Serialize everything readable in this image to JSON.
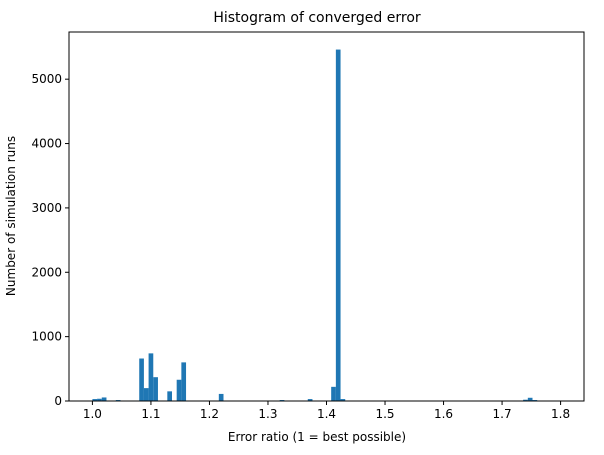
{
  "chart_data": {
    "type": "histogram",
    "title": "Histogram of converged error",
    "x_label": "Error ratio (1 = best possible)",
    "y_label": "Number of simulation runs",
    "color": "#1f77b4",
    "bins": [
      1.0,
      1.008,
      1.016,
      1.024,
      1.032,
      1.04,
      1.048,
      1.056,
      1.064,
      1.072,
      1.08,
      1.088,
      1.096,
      1.104,
      1.112,
      1.12,
      1.128,
      1.136,
      1.144,
      1.152,
      1.16,
      1.168,
      1.176,
      1.184,
      1.192,
      1.2,
      1.208,
      1.216,
      1.224,
      1.232,
      1.24,
      1.248,
      1.256,
      1.264,
      1.272,
      1.28,
      1.288,
      1.296,
      1.304,
      1.312,
      1.32,
      1.328,
      1.336,
      1.344,
      1.352,
      1.36,
      1.368,
      1.376,
      1.384,
      1.392,
      1.4,
      1.408,
      1.416,
      1.424,
      1.432,
      1.44,
      1.448,
      1.456,
      1.464,
      1.472,
      1.48,
      1.488,
      1.496,
      1.504,
      1.512,
      1.52,
      1.528,
      1.536,
      1.544,
      1.552,
      1.56,
      1.568,
      1.576,
      1.584,
      1.592,
      1.6,
      1.608,
      1.616,
      1.624,
      1.632,
      1.64,
      1.648,
      1.656,
      1.664,
      1.672,
      1.68,
      1.688,
      1.696,
      1.704,
      1.712,
      1.72,
      1.728,
      1.736,
      1.744,
      1.752,
      1.76,
      1.768,
      1.776,
      1.784,
      1.792,
      1.8
    ],
    "counts": [
      30,
      35,
      55,
      0,
      0,
      15,
      0,
      0,
      0,
      0,
      660,
      200,
      740,
      370,
      0,
      0,
      150,
      0,
      330,
      600,
      0,
      0,
      0,
      0,
      0,
      0,
      0,
      110,
      0,
      0,
      0,
      0,
      0,
      0,
      0,
      0,
      0,
      0,
      0,
      0,
      15,
      0,
      0,
      0,
      0,
      0,
      30,
      0,
      0,
      0,
      0,
      220,
      5460,
      30,
      0,
      0,
      0,
      0,
      0,
      0,
      0,
      0,
      0,
      0,
      0,
      0,
      0,
      0,
      0,
      0,
      0,
      0,
      0,
      0,
      0,
      0,
      0,
      0,
      0,
      0,
      0,
      0,
      0,
      0,
      0,
      0,
      0,
      0,
      0,
      0,
      0,
      0,
      20,
      50,
      15,
      0,
      0,
      0,
      0,
      0
    ],
    "xlim": [
      0.96,
      1.84
    ],
    "xticks": [
      {
        "value": 1,
        "label": "1.0"
      },
      1.1,
      1.2,
      1.3,
      1.4,
      1.5,
      1.6,
      1.7,
      1.8
    ],
    "ylim": [
      0,
      5733
    ],
    "yticks": [
      0,
      1000,
      2000,
      3000,
      4000,
      5000
    ]
  }
}
